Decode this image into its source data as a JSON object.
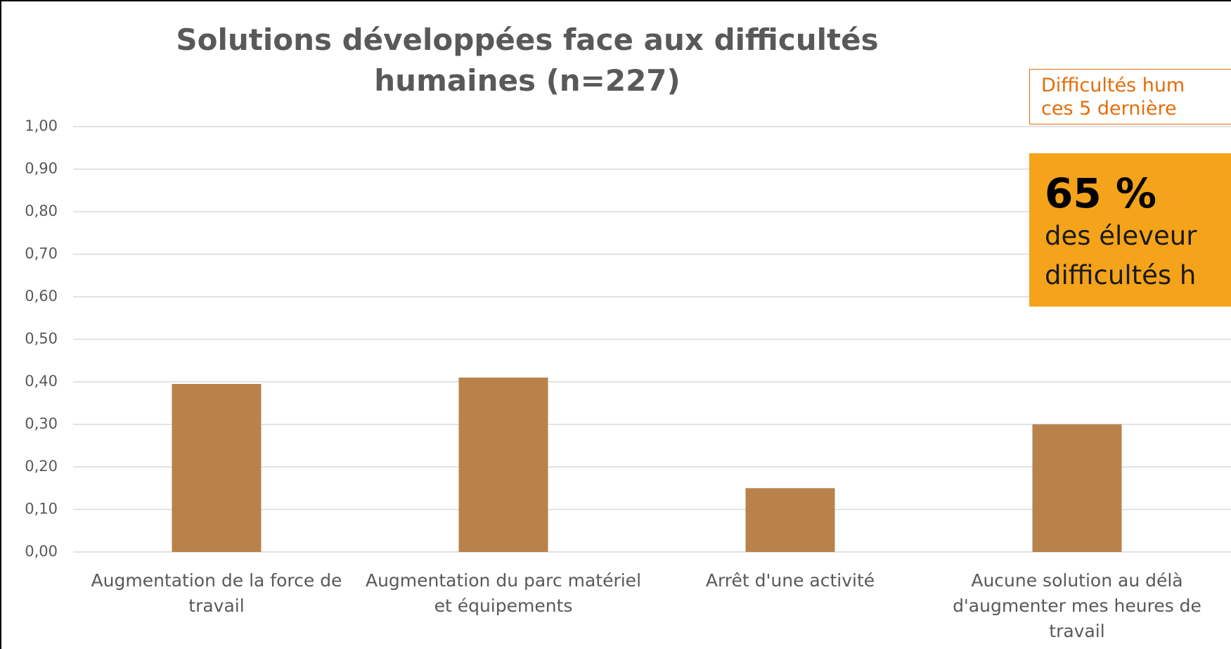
{
  "chart_data": {
    "type": "bar",
    "title": [
      "Solutions développées face aux difficultés",
      "humaines (n=227)"
    ],
    "categories": [
      "Augmentation de la force de travail",
      "Augmentation du parc matériel et équipements",
      "Arrêt d'une activité",
      "Aucune solution au délà d'augmenter mes heures de travail"
    ],
    "values": [
      0.395,
      0.41,
      0.15,
      0.3
    ],
    "color": "#b8824a",
    "ylim": [
      0,
      1
    ],
    "yticks": [
      {
        "value": 0,
        "label": "0,00"
      },
      {
        "value": 0.1,
        "label": "0,10"
      },
      {
        "value": 0.2,
        "label": "0,20"
      },
      {
        "value": 0.3,
        "label": "0,30"
      },
      {
        "value": 0.4,
        "label": "0,40"
      },
      {
        "value": 0.5,
        "label": "0,50"
      },
      {
        "value": 0.6,
        "label": "0,60"
      },
      {
        "value": 0.7,
        "label": "0,70"
      },
      {
        "value": 0.8,
        "label": "0,80"
      },
      {
        "value": 0.9,
        "label": "0,90"
      },
      {
        "value": 1,
        "label": "1,00"
      }
    ],
    "grid": true,
    "annotations": {
      "box": [
        "Difficultés hum",
        "ces 5 dernière"
      ],
      "highlight": {
        "big": "65 %",
        "lines": [
          "des éleveur",
          "difficultés h"
        ]
      }
    }
  }
}
